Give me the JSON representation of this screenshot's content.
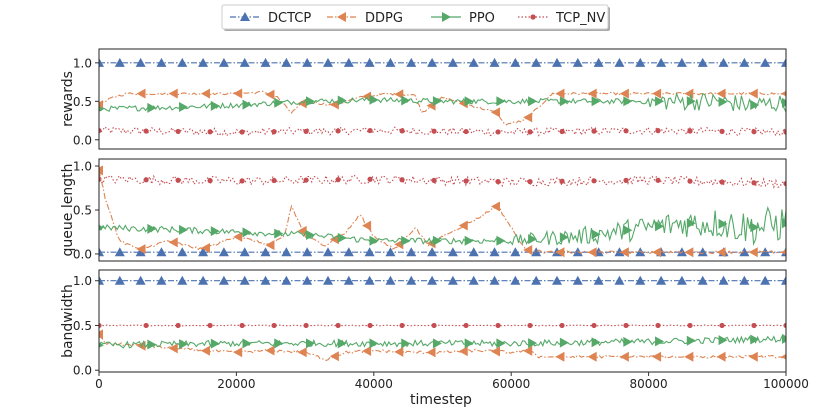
{
  "chart_data": {
    "type": "line",
    "legend": {
      "placement": "top-center",
      "entries": [
        {
          "name": "DCTCP",
          "color": "#4c72b0",
          "marker": "triangle-up",
          "dash": "dash-dot"
        },
        {
          "name": "DDPG",
          "color": "#dd8452",
          "marker": "triangle-left",
          "dash": "dash-dot"
        },
        {
          "name": "PPO",
          "color": "#55a868",
          "marker": "triangle-right",
          "dash": "solid"
        },
        {
          "name": "TCP_NV",
          "color": "#c44e52",
          "marker": "circle",
          "dash": "dotted"
        }
      ]
    },
    "xlabel": "timestep",
    "xlim": [
      0,
      100000
    ],
    "xticks": [
      0,
      20000,
      40000,
      60000,
      80000,
      100000
    ],
    "xtick_labels": [
      "0",
      "20000",
      "40000",
      "60000",
      "80000",
      "100000"
    ],
    "panels": [
      {
        "ylabel": "rewards",
        "ylim": [
          -0.12,
          1.18
        ],
        "yticks": [
          0.0,
          0.5,
          1.0
        ],
        "ytick_labels": [
          "0.0",
          "0.5",
          "1.0"
        ],
        "series": [
          {
            "name": "DCTCP",
            "x": [
              0,
              100000
            ],
            "values": [
              1.0,
              1.0
            ]
          },
          {
            "name": "DDPG",
            "x": [
              0,
              2000,
              4000,
              8000,
              12000,
              16000,
              20000,
              24000,
              26000,
              28000,
              30000,
              34000,
              38000,
              42000,
              46000,
              47000,
              50000,
              54000,
              58000,
              59000,
              62000,
              66000,
              70000,
              74000,
              78000,
              82000,
              86000,
              90000,
              94000,
              98000,
              100000
            ],
            "values": [
              0.45,
              0.55,
              0.6,
              0.6,
              0.6,
              0.6,
              0.6,
              0.62,
              0.55,
              0.35,
              0.5,
              0.45,
              0.55,
              0.6,
              0.58,
              0.35,
              0.55,
              0.45,
              0.35,
              0.2,
              0.25,
              0.6,
              0.6,
              0.6,
              0.6,
              0.6,
              0.6,
              0.6,
              0.6,
              0.6,
              0.6
            ]
          },
          {
            "name": "PPO",
            "x": [
              0,
              10000,
              20000,
              30000,
              40000,
              50000,
              60000,
              70000,
              80000,
              85000,
              90000,
              95000,
              100000
            ],
            "values": [
              0.4,
              0.42,
              0.45,
              0.5,
              0.52,
              0.5,
              0.5,
              0.5,
              0.5,
              0.5,
              0.5,
              0.45,
              0.48
            ]
          },
          {
            "name": "TCP_NV",
            "x": [
              0,
              20000,
              40000,
              60000,
              80000,
              100000
            ],
            "values": [
              0.12,
              0.1,
              0.12,
              0.1,
              0.12,
              0.1
            ]
          }
        ]
      },
      {
        "ylabel": "queue length",
        "ylim": [
          -0.08,
          1.08
        ],
        "yticks": [
          0.0,
          0.5,
          1.0
        ],
        "ytick_labels": [
          "0.0",
          "0.5",
          "1.0"
        ],
        "series": [
          {
            "name": "DCTCP",
            "x": [
              0,
              100000
            ],
            "values": [
              0.02,
              0.02
            ]
          },
          {
            "name": "DDPG",
            "x": [
              0,
              1000,
              3000,
              6000,
              10000,
              15000,
              20000,
              25000,
              27000,
              28000,
              30000,
              33000,
              36000,
              38000,
              40000,
              43000,
              46000,
              48000,
              50000,
              55000,
              58000,
              60000,
              62000,
              65000,
              70000,
              75000,
              80000,
              85000,
              90000,
              95000,
              100000
            ],
            "values": [
              0.95,
              0.6,
              0.15,
              0.05,
              0.15,
              0.05,
              0.2,
              0.1,
              0.2,
              0.55,
              0.2,
              0.1,
              0.25,
              0.45,
              0.2,
              0.05,
              0.3,
              0.1,
              0.2,
              0.4,
              0.55,
              0.3,
              0.05,
              0.02,
              0.02,
              0.02,
              0.02,
              0.02,
              0.02,
              0.02,
              0.02
            ]
          },
          {
            "name": "PPO",
            "x": [
              0,
              10000,
              20000,
              30000,
              40000,
              50000,
              60000,
              65000,
              70000,
              75000,
              80000,
              85000,
              90000,
              95000,
              100000
            ],
            "values": [
              0.3,
              0.28,
              0.25,
              0.22,
              0.15,
              0.15,
              0.15,
              0.18,
              0.2,
              0.25,
              0.3,
              0.35,
              0.35,
              0.3,
              0.35
            ]
          },
          {
            "name": "TCP_NV",
            "x": [
              0,
              20000,
              40000,
              60000,
              80000,
              100000
            ],
            "values": [
              0.85,
              0.83,
              0.85,
              0.82,
              0.84,
              0.8
            ]
          }
        ]
      },
      {
        "ylabel": "bandwidth",
        "ylim": [
          -0.02,
          1.12
        ],
        "yticks": [
          0.0,
          0.5,
          1.0
        ],
        "ytick_labels": [
          "0.0",
          "0.5",
          "1.0"
        ],
        "series": [
          {
            "name": "DCTCP",
            "x": [
              0,
              100000
            ],
            "values": [
              1.0,
              1.0
            ]
          },
          {
            "name": "DDPG",
            "x": [
              0,
              1000,
              5000,
              10000,
              15000,
              20000,
              25000,
              30000,
              33000,
              36000,
              40000,
              45000,
              50000,
              55000,
              60000,
              63000,
              64000,
              70000,
              80000,
              90000,
              100000
            ],
            "values": [
              0.4,
              0.3,
              0.28,
              0.25,
              0.22,
              0.2,
              0.22,
              0.2,
              0.12,
              0.2,
              0.22,
              0.2,
              0.2,
              0.22,
              0.2,
              0.22,
              0.15,
              0.15,
              0.15,
              0.15,
              0.15
            ]
          },
          {
            "name": "PPO",
            "x": [
              0,
              20000,
              40000,
              60000,
              80000,
              100000
            ],
            "values": [
              0.28,
              0.3,
              0.3,
              0.3,
              0.32,
              0.35
            ]
          },
          {
            "name": "TCP_NV",
            "x": [
              0,
              20000,
              40000,
              60000,
              80000,
              100000
            ],
            "values": [
              0.5,
              0.5,
              0.5,
              0.5,
              0.5,
              0.5
            ]
          }
        ]
      }
    ]
  }
}
